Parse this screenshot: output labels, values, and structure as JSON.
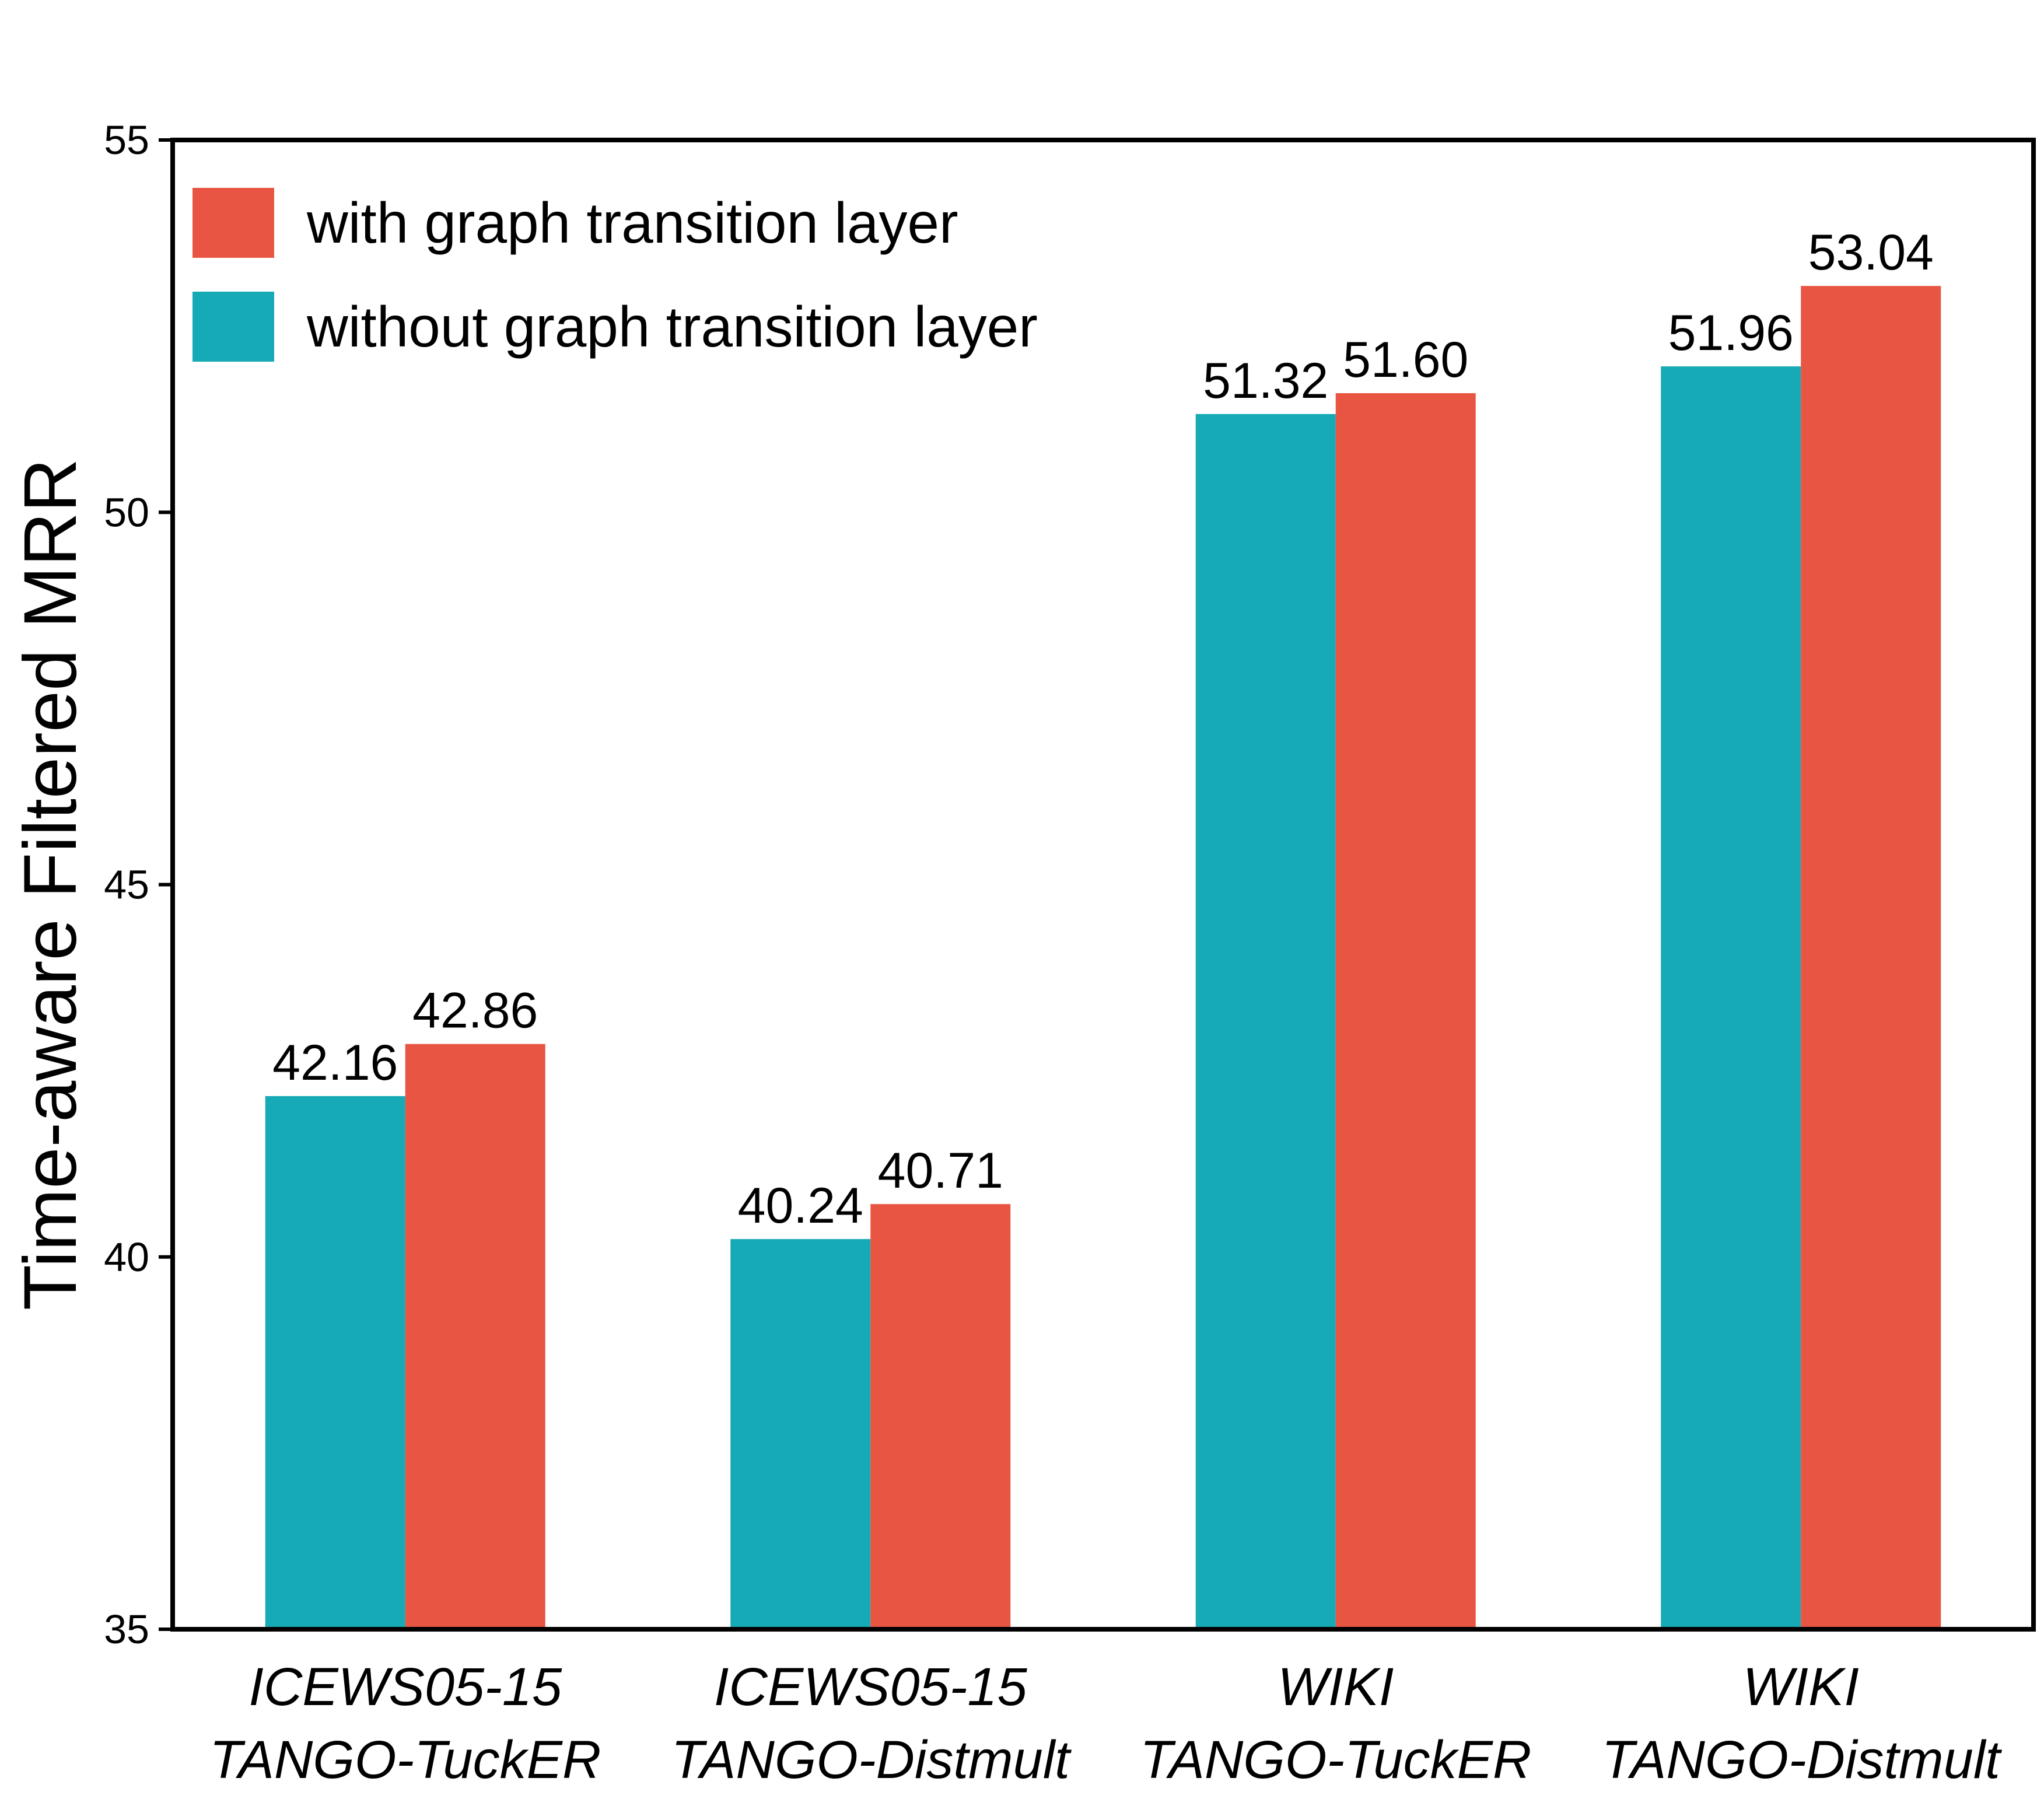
{
  "chart_data": {
    "type": "bar",
    "title": "",
    "xlabel": "",
    "ylabel": "Time-aware Filtered MRR",
    "ylim": [
      35,
      55
    ],
    "yticks": [
      35,
      40,
      45,
      50,
      55
    ],
    "grid": false,
    "legend_position": "top-left",
    "categories": [
      [
        "ICEWS05-15",
        "TANGO-TuckER"
      ],
      [
        "ICEWS05-15",
        "TANGO-Distmult"
      ],
      [
        "WIKI",
        "TANGO-TuckER"
      ],
      [
        "WIKI",
        "TANGO-Distmult"
      ]
    ],
    "series": [
      {
        "name": "without graph transition layer",
        "color": "#16a9b6",
        "values": [
          42.16,
          40.24,
          51.32,
          51.96
        ],
        "labels": [
          "42.16",
          "40.24",
          "51.32",
          "51.96"
        ]
      },
      {
        "name": "with graph transition layer",
        "color": "#e85643",
        "values": [
          42.86,
          40.71,
          51.6,
          53.04
        ],
        "labels": [
          "42.86",
          "40.71",
          "51.60",
          "53.04"
        ]
      }
    ],
    "legend_order": [
      1,
      0
    ]
  }
}
